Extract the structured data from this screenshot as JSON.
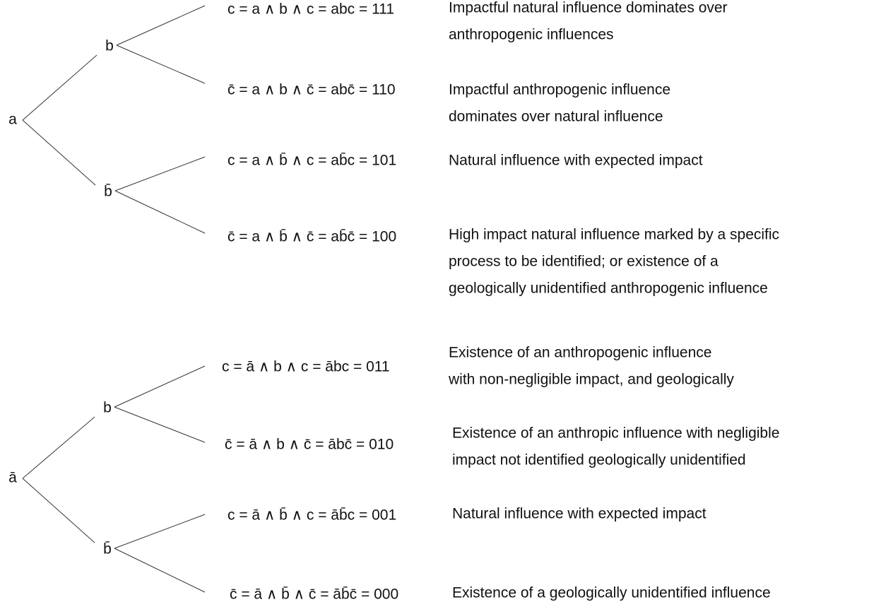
{
  "trees": [
    {
      "root": "a",
      "branches": [
        {
          "label": "b",
          "leaves": [
            {
              "formula": "c = a ∧ b ∧ c = abc = 111",
              "description": [
                "Impactful natural influence dominates over",
                "anthropogenic influences"
              ]
            },
            {
              "formula": "c̄ = a ∧ b ∧ c̄ = abc̄ = 110",
              "description": [
                "Impactful anthropogenic influence",
                "dominates over natural influence"
              ]
            }
          ]
        },
        {
          "label": "b̄",
          "leaves": [
            {
              "formula": "c = a ∧ b̄ ∧ c = ab̄c = 101",
              "description": [
                "Natural influence with expected impact"
              ]
            },
            {
              "formula": "c̄ = a ∧ b̄ ∧ c̄ = ab̄c̄ = 100",
              "description": [
                "High impact natural influence marked by a specific",
                "process to be identified; or existence of a",
                "geologically unidentified anthropogenic influence"
              ]
            }
          ]
        }
      ]
    },
    {
      "root": "ā",
      "branches": [
        {
          "label": "b",
          "leaves": [
            {
              "formula": "c = ā ∧ b ∧ c = ābc = 011",
              "description": [
                "Existence of an anthropogenic influence",
                "with non-negligible impact, and geologically"
              ]
            },
            {
              "formula": "c̄ = ā ∧ b ∧ c̄ = ābc̄ = 010",
              "description": [
                "Existence of an anthropic influence with negligible",
                "impact not identified geologically unidentified"
              ]
            }
          ]
        },
        {
          "label": "b̄",
          "leaves": [
            {
              "formula": "c = ā ∧ b̄ ∧ c = āb̄c = 001",
              "description": [
                "Natural influence with expected impact"
              ]
            },
            {
              "formula": "c̄ = ā ∧ b̄ ∧ c̄ = āb̄c̄ = 000",
              "description": [
                "Existence of a geologically unidentified influence"
              ]
            }
          ]
        }
      ]
    }
  ]
}
